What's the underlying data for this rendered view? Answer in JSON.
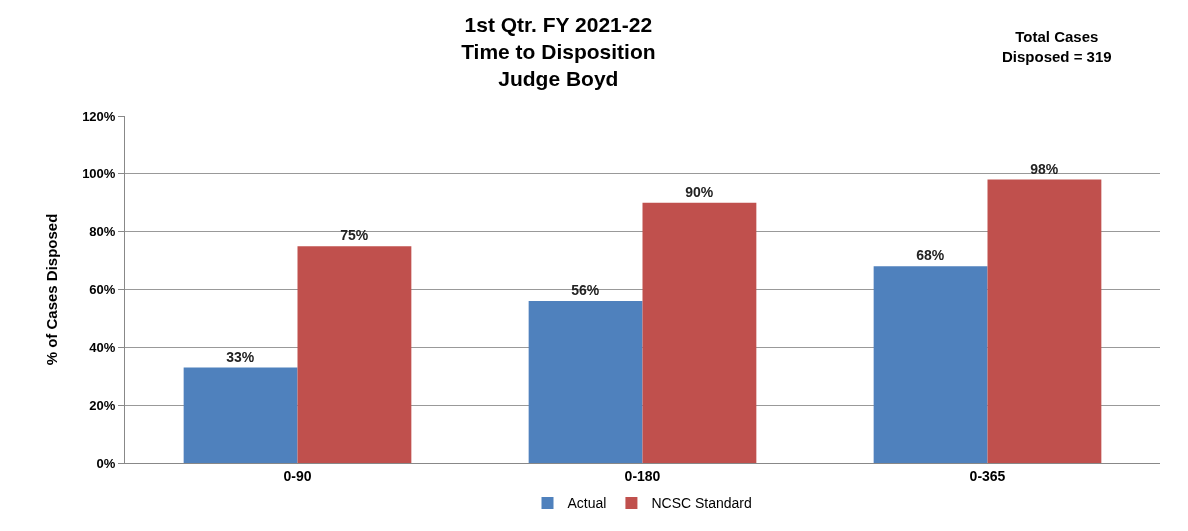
{
  "chart_data": {
    "type": "bar",
    "title": "1st Qtr. FY 2021-22\nTime to Disposition\nJudge Boyd",
    "ylabel": "% of Cases Disposed",
    "annotations": [
      "Total Cases\nDisposed = 319"
    ],
    "categories": [
      "0-90",
      "0-180",
      "0-365"
    ],
    "series": [
      {
        "name": "Actual",
        "color": "#4f81bd",
        "values": [
          33,
          56,
          68
        ],
        "value_labels": [
          "33%",
          "56%",
          "68%"
        ]
      },
      {
        "name": "NCSC Standard",
        "color": "#c0504d",
        "values": [
          75,
          90,
          98
        ],
        "value_labels": [
          "75%",
          "90%",
          "98%"
        ]
      }
    ],
    "ylim": [
      0,
      120
    ],
    "yticks": [
      {
        "value": 0,
        "label": "0%"
      },
      {
        "value": 20,
        "label": "20%"
      },
      {
        "value": 40,
        "label": "40%"
      },
      {
        "value": 60,
        "label": "60%"
      },
      {
        "value": 80,
        "label": "80%"
      },
      {
        "value": 100,
        "label": "100%"
      },
      {
        "value": 120,
        "label": "120%"
      }
    ],
    "grid": "y",
    "legend": "bottom"
  }
}
